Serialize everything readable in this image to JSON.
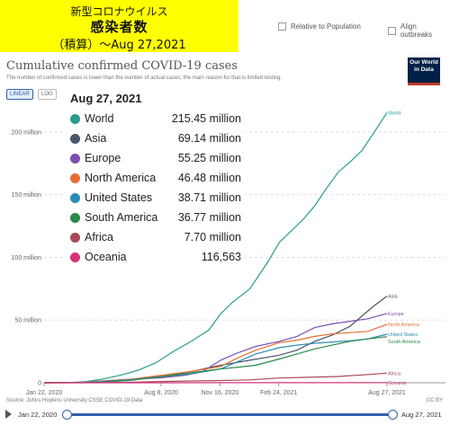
{
  "banner": {
    "line1": "新型コロナウイルス",
    "line2": "感染者数",
    "line3": "（積算）～Aug 27,2021"
  },
  "options": {
    "relative": "Relative to Population",
    "align": "Align outbreaks"
  },
  "logo": {
    "line1": "Our World",
    "line2": "in Data"
  },
  "toggles": {
    "linear": "LINEAR",
    "log": "LOG"
  },
  "source": "Source: Johns Hopkins University CSSE COVID-19 Data",
  "license": "CC BY",
  "timeline": {
    "start": "Jan 22, 2020",
    "end": "Aug 27, 2021"
  },
  "legend": {
    "date": "Aug 27, 2021",
    "rows": [
      {
        "name": "World",
        "value": "215.45 million",
        "color": "#2a9d8f"
      },
      {
        "name": "Asia",
        "value": "69.14 million",
        "color": "#4a5568"
      },
      {
        "name": "Europe",
        "value": "55.25 million",
        "color": "#7b4fb0"
      },
      {
        "name": "North America",
        "value": "46.48 million",
        "color": "#e76f34"
      },
      {
        "name": "United States",
        "value": "38.71 million",
        "color": "#2b8cb6"
      },
      {
        "name": "South America",
        "value": "36.77 million",
        "color": "#2a8a48"
      },
      {
        "name": "Africa",
        "value": "7.70 million",
        "color": "#a84a55"
      },
      {
        "name": "Oceania",
        "value": "116,563",
        "color": "#d6337a"
      }
    ]
  },
  "chart_data": {
    "type": "line",
    "title": "Cumulative confirmed COVID-19 cases",
    "subtitle": "The number of confirmed cases is lower than the number of actual cases; the main reason for that is limited testing.",
    "x_ticks": [
      "Jan 22, 2020",
      "Aug 8, 2020",
      "Nov 16, 2020",
      "Feb 24, 2021",
      "Aug 27, 2021"
    ],
    "x_tick_days": [
      0,
      199,
      299,
      399,
      583
    ],
    "xlim": [
      0,
      583
    ],
    "y_ticks": [
      "0",
      "50 million",
      "100 million",
      "150 million",
      "200 million"
    ],
    "y_tick_values": [
      0,
      50,
      100,
      150,
      200
    ],
    "ylim": [
      0,
      220
    ],
    "y_unit": "million",
    "series": [
      {
        "name": "World",
        "color": "#2a9d8f",
        "points": [
          [
            0,
            0
          ],
          [
            40,
            0.1
          ],
          [
            70,
            0.8
          ],
          [
            100,
            3
          ],
          [
            130,
            6
          ],
          [
            160,
            10
          ],
          [
            190,
            16
          ],
          [
            220,
            25
          ],
          [
            250,
            33
          ],
          [
            280,
            42
          ],
          [
            300,
            55
          ],
          [
            320,
            64
          ],
          [
            350,
            75
          ],
          [
            380,
            96
          ],
          [
            400,
            112
          ],
          [
            420,
            121
          ],
          [
            440,
            130
          ],
          [
            460,
            141
          ],
          [
            480,
            155
          ],
          [
            500,
            168
          ],
          [
            520,
            176
          ],
          [
            540,
            185
          ],
          [
            560,
            199
          ],
          [
            583,
            215.45
          ]
        ]
      },
      {
        "name": "Asia",
        "color": "#4a5568",
        "points": [
          [
            0,
            0
          ],
          [
            60,
            0.3
          ],
          [
            100,
            1
          ],
          [
            150,
            2.5
          ],
          [
            200,
            5
          ],
          [
            250,
            9
          ],
          [
            300,
            14
          ],
          [
            350,
            18
          ],
          [
            400,
            22
          ],
          [
            430,
            26
          ],
          [
            460,
            33
          ],
          [
            490,
            38
          ],
          [
            520,
            45
          ],
          [
            540,
            53
          ],
          [
            560,
            61
          ],
          [
            583,
            69.14
          ]
        ]
      },
      {
        "name": "Europe",
        "color": "#7b4fb0",
        "points": [
          [
            0,
            0
          ],
          [
            50,
            0.1
          ],
          [
            80,
            0.8
          ],
          [
            120,
            2
          ],
          [
            160,
            3
          ],
          [
            200,
            4
          ],
          [
            240,
            6
          ],
          [
            270,
            9
          ],
          [
            300,
            18
          ],
          [
            330,
            24
          ],
          [
            360,
            29
          ],
          [
            400,
            33
          ],
          [
            430,
            37
          ],
          [
            460,
            44
          ],
          [
            490,
            47
          ],
          [
            520,
            49
          ],
          [
            550,
            51
          ],
          [
            583,
            55.25
          ]
        ]
      },
      {
        "name": "North America",
        "color": "#e76f34",
        "points": [
          [
            0,
            0
          ],
          [
            60,
            0.2
          ],
          [
            100,
            1.5
          ],
          [
            150,
            3
          ],
          [
            200,
            6
          ],
          [
            250,
            9
          ],
          [
            300,
            13
          ],
          [
            330,
            20
          ],
          [
            360,
            26
          ],
          [
            400,
            32
          ],
          [
            430,
            34
          ],
          [
            460,
            37
          ],
          [
            490,
            39
          ],
          [
            520,
            40
          ],
          [
            550,
            41
          ],
          [
            583,
            46.48
          ]
        ]
      },
      {
        "name": "United States",
        "color": "#2b8cb6",
        "points": [
          [
            0,
            0
          ],
          [
            60,
            0.2
          ],
          [
            100,
            1.2
          ],
          [
            150,
            2.5
          ],
          [
            200,
            5
          ],
          [
            250,
            7
          ],
          [
            300,
            11
          ],
          [
            330,
            17
          ],
          [
            360,
            23
          ],
          [
            400,
            28
          ],
          [
            430,
            30
          ],
          [
            460,
            31.5
          ],
          [
            490,
            32.5
          ],
          [
            520,
            33.5
          ],
          [
            550,
            35
          ],
          [
            583,
            38.71
          ]
        ]
      },
      {
        "name": "South America",
        "color": "#2a8a48",
        "points": [
          [
            0,
            0
          ],
          [
            60,
            0.1
          ],
          [
            100,
            0.5
          ],
          [
            150,
            2
          ],
          [
            200,
            5
          ],
          [
            250,
            8
          ],
          [
            300,
            11
          ],
          [
            330,
            12.5
          ],
          [
            360,
            14
          ],
          [
            400,
            19
          ],
          [
            430,
            23
          ],
          [
            460,
            27
          ],
          [
            490,
            30
          ],
          [
            520,
            33
          ],
          [
            550,
            35
          ],
          [
            583,
            36.77
          ]
        ]
      },
      {
        "name": "Africa",
        "color": "#a84a55",
        "points": [
          [
            0,
            0
          ],
          [
            100,
            0.1
          ],
          [
            150,
            0.4
          ],
          [
            200,
            1
          ],
          [
            250,
            1.4
          ],
          [
            300,
            1.8
          ],
          [
            350,
            2.3
          ],
          [
            400,
            3.8
          ],
          [
            450,
            4.4
          ],
          [
            500,
            5
          ],
          [
            540,
            6.2
          ],
          [
            583,
            7.7
          ]
        ]
      },
      {
        "name": "Oceania",
        "color": "#d6337a",
        "points": [
          [
            0,
            0
          ],
          [
            100,
            0.01
          ],
          [
            200,
            0.03
          ],
          [
            300,
            0.05
          ],
          [
            400,
            0.06
          ],
          [
            500,
            0.07
          ],
          [
            583,
            0.117
          ]
        ]
      }
    ],
    "end_labels": [
      "World",
      "Asia",
      "Europe",
      "North America",
      "United States",
      "South America",
      "Africa",
      "Oceania"
    ]
  }
}
